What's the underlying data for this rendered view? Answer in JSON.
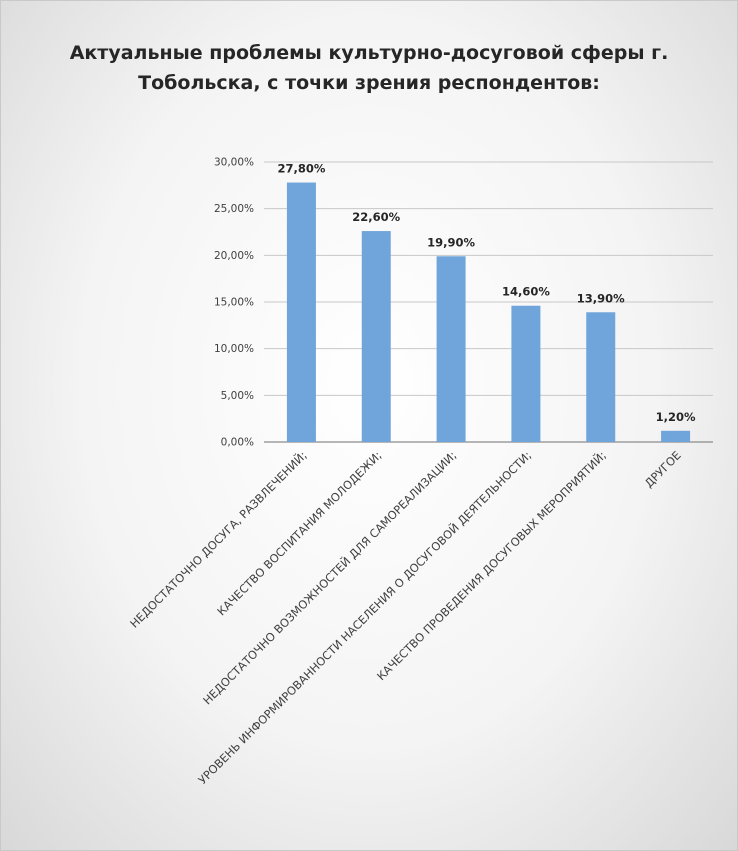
{
  "chart_data": {
    "type": "bar",
    "title_lines": [
      "Актуальные проблемы культурно-досуговой сферы г.",
      "Тобольска, с точки зрения респондентов:"
    ],
    "categories": [
      "НЕДОСТАТОЧНО ДОСУГА, РАЗВЛЕЧЕНИЙ;",
      "КАЧЕСТВО ВОСПИТАНИЯ МОЛОДЕЖИ;",
      "НЕДОСТАТОЧНО ВОЗМОЖНОСТЕЙ ДЛЯ САМОРЕАЛИЗАЦИИ;",
      "УРОВЕНЬ ИНФОРМИРОВАННОСТИ НАСЕЛЕНИЯ О ДОСУГОВОЙ ДЕЯТЕЛЬНОСТИ;",
      "КАЧЕСТВО ПРОВЕДЕНИЯ ДОСУГОВЫХ МЕРОПРИЯТИЙ;",
      "ДРУГОЕ"
    ],
    "values": [
      27.8,
      22.6,
      19.9,
      14.6,
      13.9,
      1.2
    ],
    "data_labels": [
      "27,80%",
      "22,60%",
      "19,90%",
      "14,60%",
      "13,90%",
      "1,20%"
    ],
    "y_ticks": [
      0,
      5,
      10,
      15,
      20,
      25,
      30
    ],
    "y_tick_labels": [
      "0,00%",
      "5,00%",
      "10,00%",
      "15,00%",
      "20,00%",
      "25,00%",
      "30,00%"
    ],
    "ylim": [
      0,
      30
    ],
    "grid": true,
    "legend": "none",
    "bar_color": "#6fa5da",
    "xlabel": "",
    "ylabel": ""
  }
}
